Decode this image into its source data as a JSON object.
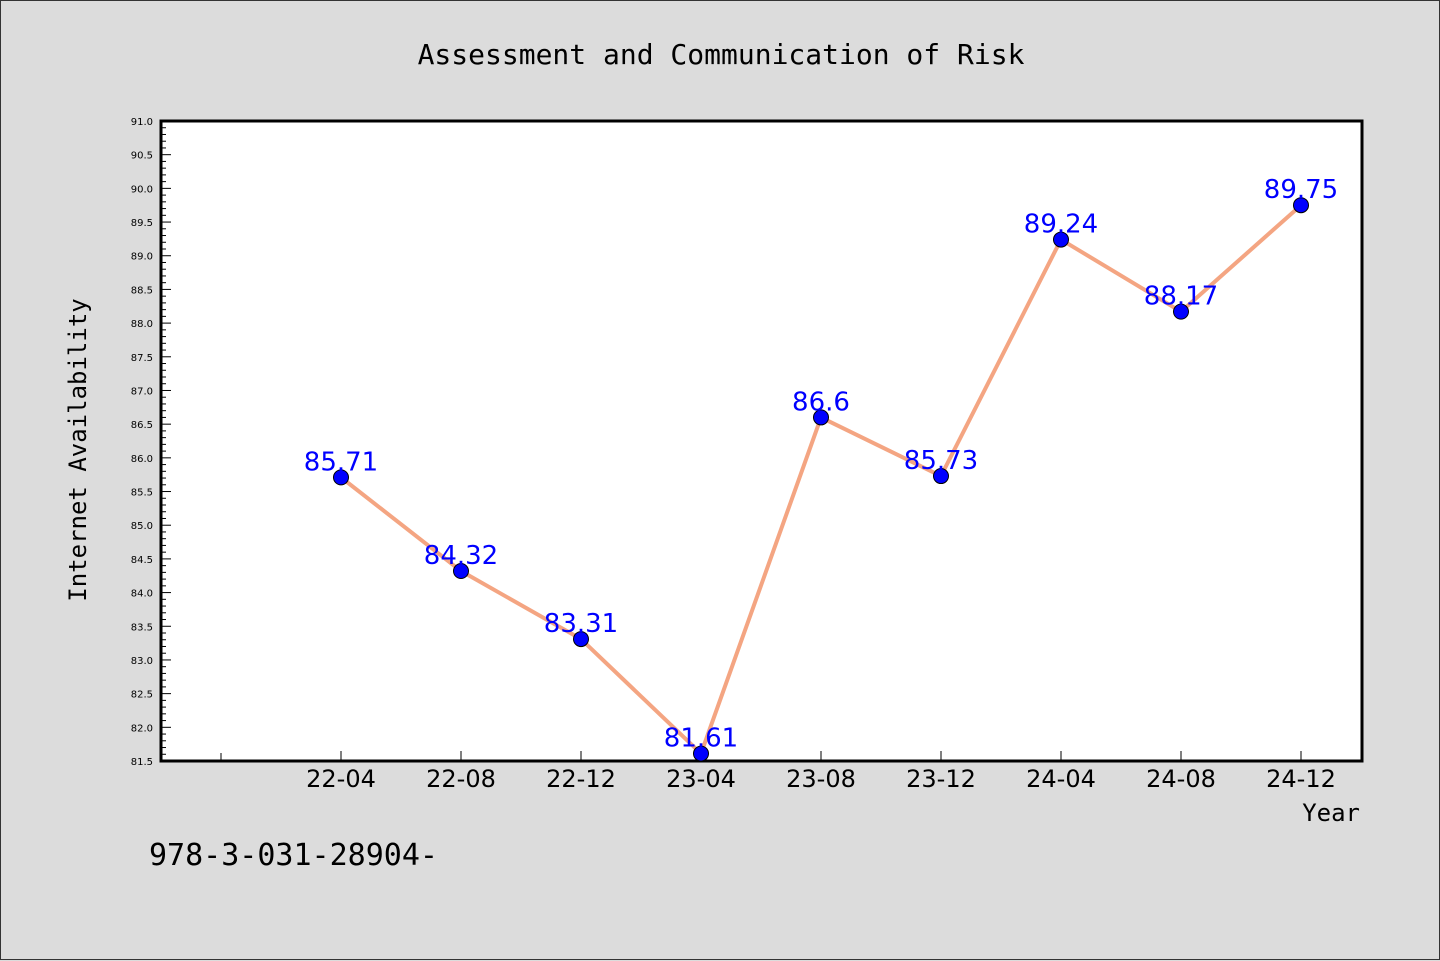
{
  "chart_data": {
    "type": "line",
    "title": "Assessment and Communication of Risk",
    "xlabel": "Year",
    "ylabel": "Internet Availability",
    "categories": [
      "22-04",
      "22-08",
      "22-12",
      "23-04",
      "23-08",
      "23-12",
      "24-04",
      "24-08",
      "24-12"
    ],
    "series": [
      {
        "values": [
          85.71,
          84.32,
          83.31,
          81.61,
          86.6,
          85.73,
          89.24,
          88.17,
          89.75
        ],
        "labels": [
          "85.71",
          "84.32",
          "83.31",
          "81.61",
          "86.6",
          "85.73",
          "89.24",
          "88.17",
          "89.75"
        ],
        "line_color": "#f4a582",
        "marker_color": "#0000ff"
      }
    ],
    "ylim": [
      81.5,
      91.0
    ],
    "yticks": [
      "81.5",
      "82.0",
      "82.5",
      "83.0",
      "83.5",
      "84.0",
      "84.5",
      "85.0",
      "85.5",
      "86.0",
      "86.5",
      "87.0",
      "87.5",
      "88.0",
      "88.5",
      "89.0",
      "89.5",
      "90.0",
      "90.5",
      "91.0"
    ],
    "grid": false,
    "legend": "none"
  },
  "footer_text": "978-3-031-28904-",
  "colors": {
    "background": "#dcdcdc",
    "plot_background": "#ffffff",
    "line": "#f4a582",
    "marker": "#0000ff",
    "data_label": "#0000ff"
  }
}
